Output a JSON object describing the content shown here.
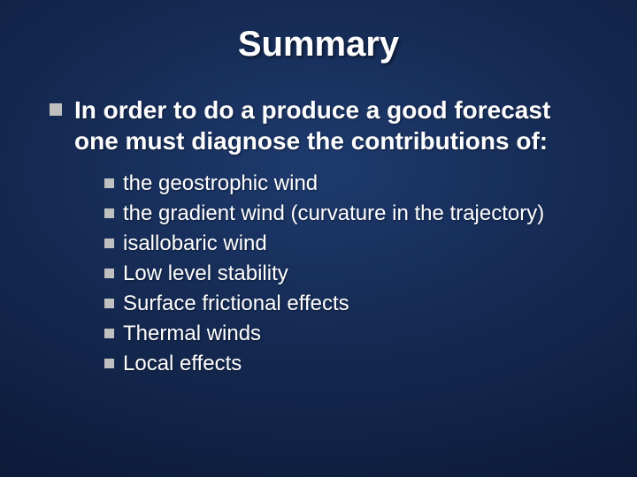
{
  "title": "Summary",
  "title_fontsize": 40,
  "main": {
    "text": "In order to do a produce a good forecast one must diagnose the contributions of:",
    "fontsize": 28,
    "bullet_size": 14,
    "bullet_color": "#c0c0c0"
  },
  "sub": {
    "fontsize": 24,
    "bullet_size": 11,
    "bullet_color": "#c0c0c0",
    "items": [
      "the geostrophic wind",
      "the gradient wind (curvature in the trajectory)",
      "isallobaric wind",
      "Low level stability",
      "Surface frictional effects",
      "Thermal winds",
      "Local effects"
    ]
  },
  "colors": {
    "text": "#ffffff",
    "bg_center": "#1e3a6e",
    "bg_mid": "#14284f",
    "bg_edge": "#0a1530"
  }
}
